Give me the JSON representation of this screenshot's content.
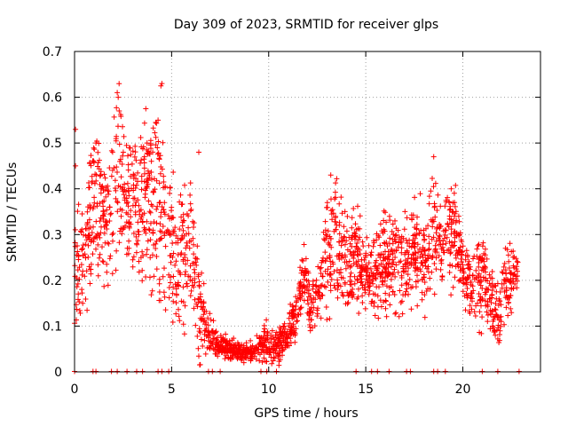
{
  "chart_data": {
    "type": "scatter",
    "title": "Day 309 of 2023, SRMTID for receiver glps",
    "xlabel": "GPS time / hours",
    "ylabel": "SRMTID / TECUs",
    "xlim": [
      0,
      24
    ],
    "ylim": [
      0,
      0.7
    ],
    "x_ticks": [
      0,
      5,
      10,
      15,
      20
    ],
    "x_tick_labels": [
      "0",
      "5",
      "10",
      "15",
      "20"
    ],
    "y_ticks": [
      0,
      0.1,
      0.2,
      0.3,
      0.4,
      0.5,
      0.6,
      0.7
    ],
    "y_tick_labels": [
      "0",
      "0.1",
      "0.2",
      "0.3",
      "0.4",
      "0.5",
      "0.6",
      "0.7"
    ],
    "grid": true,
    "marker": "plus",
    "color": "#ff0000",
    "series": [
      {
        "name": "SRMTID",
        "trend": [
          [
            0.0,
            0.22,
            0.09
          ],
          [
            0.3,
            0.2,
            0.06
          ],
          [
            0.6,
            0.3,
            0.1
          ],
          [
            1.0,
            0.38,
            0.08
          ],
          [
            1.5,
            0.33,
            0.09
          ],
          [
            2.0,
            0.38,
            0.1
          ],
          [
            2.3,
            0.43,
            0.11
          ],
          [
            2.8,
            0.36,
            0.08
          ],
          [
            3.3,
            0.35,
            0.09
          ],
          [
            3.8,
            0.38,
            0.09
          ],
          [
            4.3,
            0.35,
            0.12
          ],
          [
            4.7,
            0.3,
            0.1
          ],
          [
            5.2,
            0.26,
            0.1
          ],
          [
            5.6,
            0.25,
            0.1
          ],
          [
            6.0,
            0.27,
            0.09
          ],
          [
            6.4,
            0.16,
            0.08
          ],
          [
            6.8,
            0.09,
            0.03
          ],
          [
            7.5,
            0.055,
            0.015
          ],
          [
            8.2,
            0.05,
            0.012
          ],
          [
            8.7,
            0.04,
            0.01
          ],
          [
            9.3,
            0.045,
            0.012
          ],
          [
            9.8,
            0.06,
            0.025
          ],
          [
            10.4,
            0.05,
            0.02
          ],
          [
            10.9,
            0.08,
            0.02
          ],
          [
            11.4,
            0.13,
            0.03
          ],
          [
            11.8,
            0.22,
            0.04
          ],
          [
            12.1,
            0.14,
            0.03
          ],
          [
            12.6,
            0.17,
            0.04
          ],
          [
            13.0,
            0.26,
            0.08
          ],
          [
            13.5,
            0.3,
            0.08
          ],
          [
            14.0,
            0.22,
            0.07
          ],
          [
            14.5,
            0.25,
            0.06
          ],
          [
            15.0,
            0.2,
            0.05
          ],
          [
            15.5,
            0.21,
            0.05
          ],
          [
            16.0,
            0.23,
            0.06
          ],
          [
            16.5,
            0.25,
            0.06
          ],
          [
            17.0,
            0.23,
            0.07
          ],
          [
            17.5,
            0.26,
            0.06
          ],
          [
            18.0,
            0.24,
            0.06
          ],
          [
            18.5,
            0.3,
            0.08
          ],
          [
            19.0,
            0.27,
            0.06
          ],
          [
            19.5,
            0.3,
            0.06
          ],
          [
            19.9,
            0.26,
            0.05
          ],
          [
            20.2,
            0.19,
            0.04
          ],
          [
            20.7,
            0.2,
            0.05
          ],
          [
            21.2,
            0.19,
            0.05
          ],
          [
            21.6,
            0.13,
            0.05
          ],
          [
            22.0,
            0.15,
            0.06
          ],
          [
            22.4,
            0.2,
            0.04
          ],
          [
            22.8,
            0.22,
            0.03
          ]
        ],
        "spikes": [
          [
            2.2,
            0.61
          ],
          [
            2.25,
            0.6
          ],
          [
            2.3,
            0.57
          ],
          [
            4.45,
            0.625
          ],
          [
            4.5,
            0.63
          ],
          [
            4.3,
            0.55
          ],
          [
            1.1,
            0.5
          ],
          [
            0.05,
            0.53
          ],
          [
            3.6,
            0.47
          ],
          [
            18.5,
            0.47
          ],
          [
            13.2,
            0.43
          ],
          [
            19.4,
            0.4
          ],
          [
            6.4,
            0.48
          ],
          [
            22.2,
            0.27
          ],
          [
            0.05,
            0.45
          ]
        ],
        "zero_points": [
          0.0,
          0.95,
          1.1,
          1.9,
          2.2,
          2.7,
          3.2,
          3.5,
          4.3,
          4.5,
          4.85,
          6.9,
          7.1,
          7.5,
          9.6,
          9.9,
          10.4,
          14.5,
          15.3,
          15.6,
          16.2,
          17.1,
          17.3,
          18.5,
          18.7,
          19.1,
          21.0,
          21.8,
          22.9
        ],
        "x_range": [
          0,
          22.85
        ],
        "point_count": 2300
      }
    ]
  }
}
